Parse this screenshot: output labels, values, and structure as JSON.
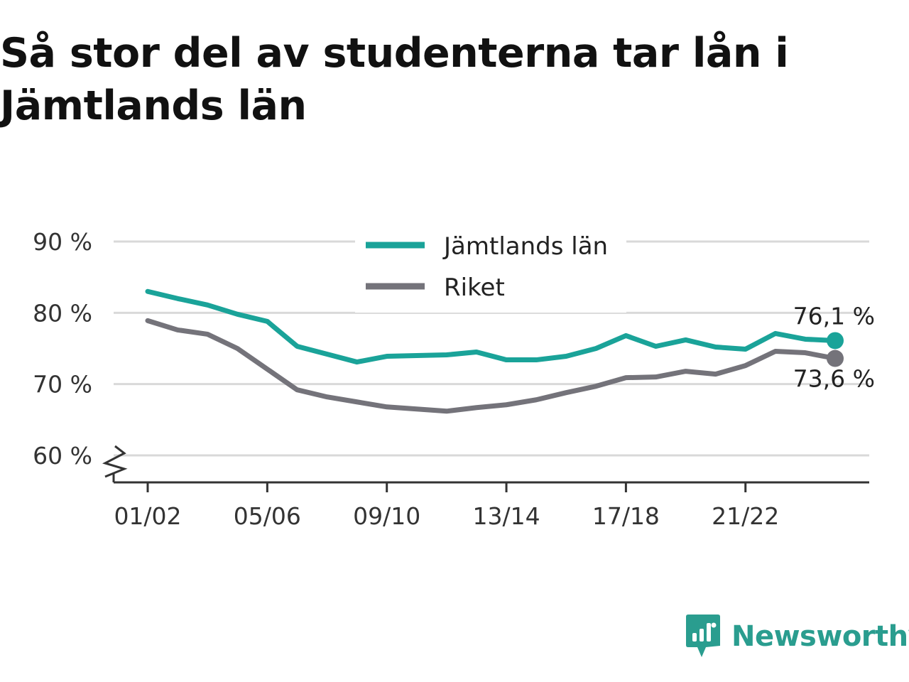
{
  "title_line1": "Så stor del av studenterna tar lån i",
  "title_line2": "Jämtlands län",
  "brand": {
    "name": "Newsworthy",
    "color": "#2a9d8f"
  },
  "colors": {
    "jamtland": "#1aa399",
    "riket": "#74737a",
    "grid": "#d9d9d9",
    "axis": "#333333"
  },
  "chart_data": {
    "type": "line",
    "title": "Så stor del av studenterna tar lån i Jämtlands län",
    "x": [
      "01/02",
      "02/03",
      "03/04",
      "04/05",
      "05/06",
      "06/07",
      "07/08",
      "08/09",
      "09/10",
      "10/11",
      "11/12",
      "12/13",
      "13/14",
      "14/15",
      "15/16",
      "16/17",
      "17/18",
      "18/19",
      "19/20",
      "20/21",
      "21/22",
      "22/23",
      "23/24",
      "24/25"
    ],
    "x_tick_labels": [
      "01/02",
      "05/06",
      "09/10",
      "13/14",
      "17/18",
      "21/22"
    ],
    "y_tick_labels": [
      "60 %",
      "70 %",
      "80 %",
      "90 %"
    ],
    "y_ticks": [
      60,
      70,
      80,
      90
    ],
    "ylim": [
      56.3,
      91
    ],
    "y_axis_break": true,
    "grid": true,
    "legend_position": "top-center",
    "series": [
      {
        "name": "Jämtlands län",
        "color": "#1aa399",
        "values": [
          83.0,
          82.0,
          81.1,
          79.8,
          78.8,
          75.3,
          74.2,
          73.1,
          73.9,
          74.0,
          74.1,
          74.5,
          73.4,
          73.4,
          73.9,
          75.0,
          76.8,
          75.3,
          76.2,
          75.2,
          74.9,
          77.1,
          76.3,
          76.1
        ],
        "end_label": "76,1 %"
      },
      {
        "name": "Riket",
        "color": "#74737a",
        "values": [
          78.9,
          77.6,
          77.0,
          75.0,
          72.1,
          69.2,
          68.2,
          67.5,
          66.8,
          66.5,
          66.2,
          66.7,
          67.1,
          67.8,
          68.8,
          69.7,
          70.9,
          71.0,
          71.8,
          71.4,
          72.6,
          74.6,
          74.4,
          73.6
        ],
        "end_label": "73,6 %"
      }
    ]
  }
}
